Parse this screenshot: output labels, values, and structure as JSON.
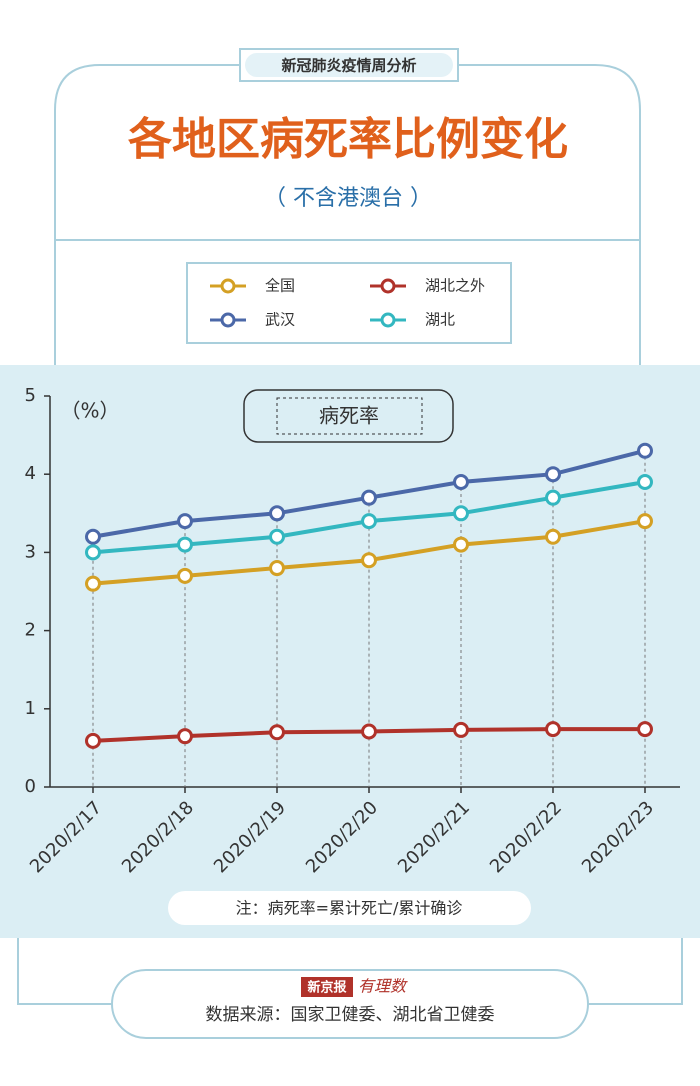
{
  "badge": "新冠肺炎疫情周分析",
  "chart_data": {
    "type": "line",
    "title": "各地区病死率比例变化",
    "subtitle": "（ 不含港澳台 ）",
    "y_label": "（%）",
    "chart_label": "病死率",
    "categories": [
      "2020/2/17",
      "2020/2/18",
      "2020/2/19",
      "2020/2/20",
      "2020/2/21",
      "2020/2/22",
      "2020/2/23"
    ],
    "series": [
      {
        "name": "全国",
        "color": "#d4a024",
        "values": [
          2.6,
          2.7,
          2.8,
          2.9,
          3.1,
          3.2,
          3.4
        ]
      },
      {
        "name": "湖北之外",
        "color": "#b0322a",
        "values": [
          0.59,
          0.65,
          0.7,
          0.71,
          0.73,
          0.74,
          0.74
        ]
      },
      {
        "name": "武汉",
        "color": "#4b68a8",
        "values": [
          3.2,
          3.4,
          3.5,
          3.7,
          3.9,
          4.0,
          4.3
        ]
      },
      {
        "name": "湖北",
        "color": "#33b7c0",
        "values": [
          3.0,
          3.1,
          3.2,
          3.4,
          3.5,
          3.7,
          3.9
        ]
      }
    ],
    "ylim": [
      0,
      5
    ],
    "yticks": [
      0,
      1,
      2,
      3,
      4,
      5
    ],
    "note": "注：病死率=累计死亡/累计确诊"
  },
  "footer": {
    "logo": "新京报",
    "logo_sub": "有理数",
    "source": "数据来源：国家卫健委、湖北省卫健委"
  }
}
